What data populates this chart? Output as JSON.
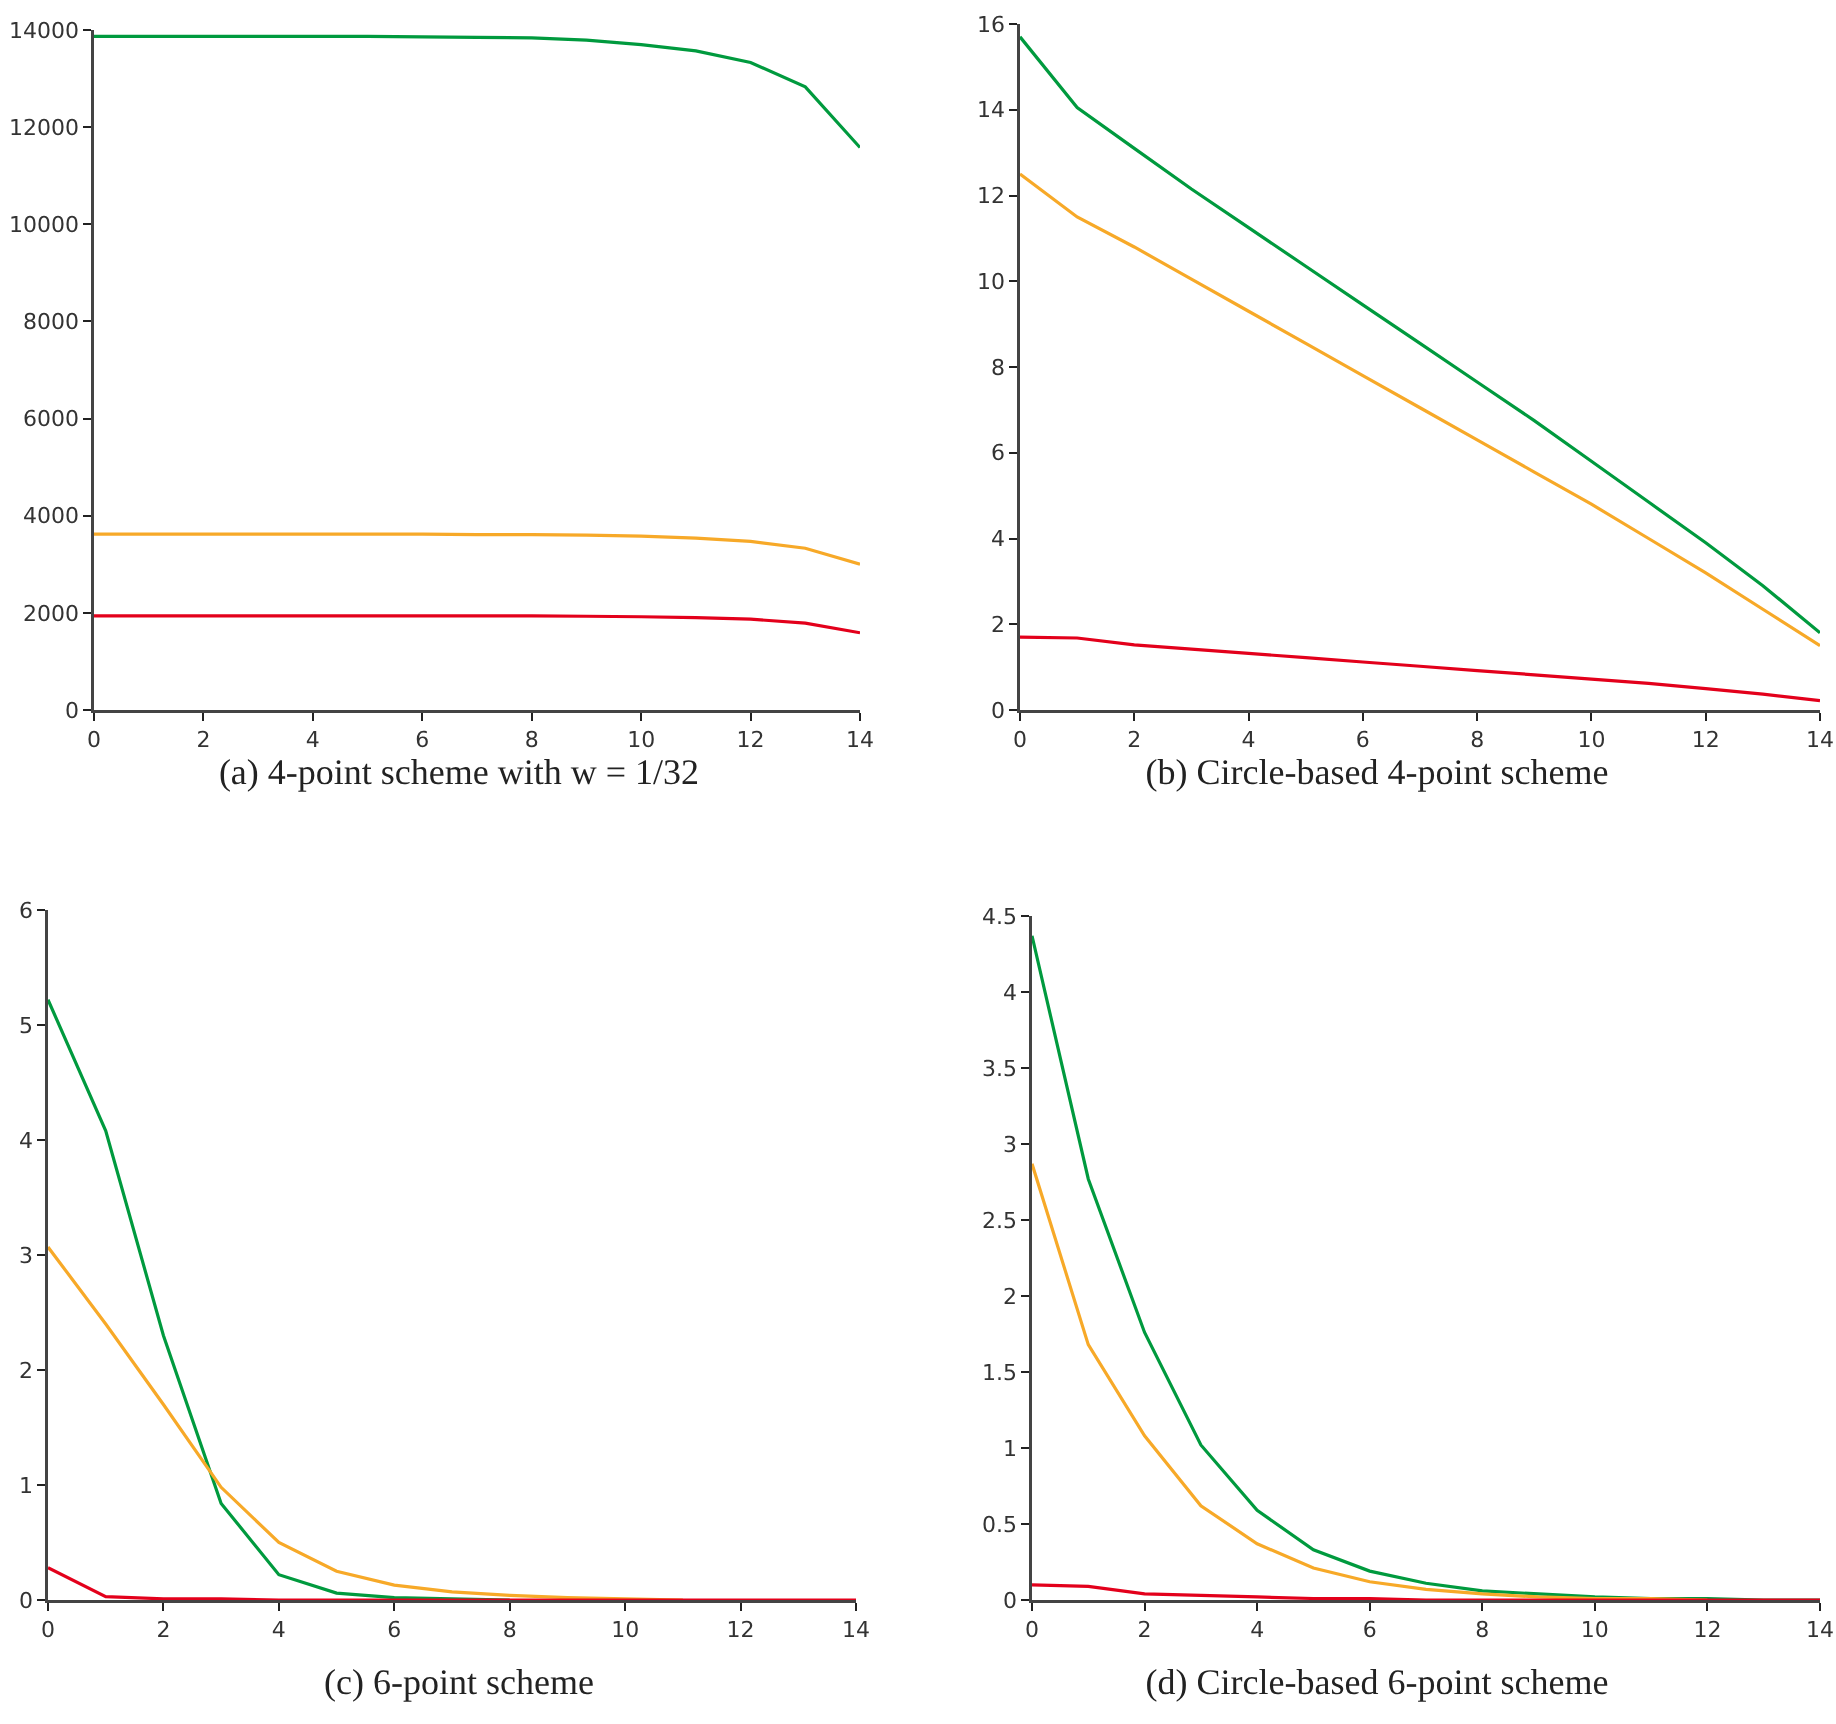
{
  "chart_data": [
    {
      "type": "line",
      "title": "(a) 4-point scheme with w = 1/32",
      "x": [
        0,
        1,
        2,
        3,
        4,
        5,
        6,
        7,
        8,
        9,
        10,
        11,
        12,
        13,
        14
      ],
      "xlim": [
        0,
        14
      ],
      "xticks": [
        0,
        2,
        4,
        6,
        8,
        10,
        12,
        14
      ],
      "ylim": [
        0,
        14000
      ],
      "yticks": [
        0,
        2000,
        4000,
        6000,
        8000,
        10000,
        12000,
        14000
      ],
      "series": [
        {
          "color": "#009a3e",
          "values": [
            13870,
            13870,
            13870,
            13870,
            13870,
            13870,
            13860,
            13850,
            13840,
            13790,
            13700,
            13570,
            13330,
            12830,
            11580
          ]
        },
        {
          "color": "#f7a928",
          "values": [
            3620,
            3620,
            3620,
            3620,
            3620,
            3620,
            3620,
            3610,
            3610,
            3600,
            3580,
            3540,
            3470,
            3330,
            3000
          ]
        },
        {
          "color": "#e3001b",
          "values": [
            1940,
            1940,
            1940,
            1940,
            1940,
            1940,
            1940,
            1940,
            1940,
            1930,
            1920,
            1900,
            1870,
            1790,
            1590
          ]
        }
      ]
    },
    {
      "type": "line",
      "title": "(b) Circle-based 4-point scheme",
      "x": [
        0,
        1,
        2,
        3,
        4,
        5,
        6,
        7,
        8,
        9,
        10,
        11,
        12,
        13,
        14
      ],
      "xlim": [
        0,
        14
      ],
      "xticks": [
        0,
        2,
        4,
        6,
        8,
        10,
        12,
        14
      ],
      "ylim": [
        0,
        16
      ],
      "yticks": [
        0,
        2,
        4,
        6,
        8,
        10,
        12,
        14,
        16
      ],
      "series": [
        {
          "color": "#009a3e",
          "values": [
            15.7,
            14.05,
            13.1,
            12.15,
            11.25,
            10.35,
            9.45,
            8.55,
            7.65,
            6.75,
            5.8,
            4.85,
            3.9,
            2.9,
            1.8
          ]
        },
        {
          "color": "#f7a928",
          "values": [
            12.5,
            11.5,
            10.8,
            10.05,
            9.3,
            8.55,
            7.8,
            7.05,
            6.3,
            5.55,
            4.8,
            4.0,
            3.2,
            2.35,
            1.5
          ]
        },
        {
          "color": "#e3001b",
          "values": [
            1.7,
            1.68,
            1.52,
            1.42,
            1.32,
            1.22,
            1.12,
            1.02,
            0.92,
            0.82,
            0.72,
            0.62,
            0.5,
            0.37,
            0.22
          ]
        }
      ]
    },
    {
      "type": "line",
      "title": "(c) 6-point scheme",
      "x": [
        0,
        1,
        2,
        3,
        4,
        5,
        6,
        7,
        8,
        9,
        10,
        11,
        12,
        13,
        14
      ],
      "xlim": [
        0,
        14
      ],
      "xticks": [
        0,
        2,
        4,
        6,
        8,
        10,
        12,
        14
      ],
      "ylim": [
        0,
        6
      ],
      "yticks": [
        0,
        1,
        2,
        3,
        4,
        5,
        6
      ],
      "series": [
        {
          "color": "#009a3e",
          "values": [
            5.22,
            4.08,
            2.3,
            0.84,
            0.22,
            0.06,
            0.02,
            0.01,
            0,
            null,
            null,
            null,
            null,
            null,
            null
          ]
        },
        {
          "color": "#f7a928",
          "values": [
            3.07,
            2.4,
            1.7,
            0.98,
            0.5,
            0.25,
            0.13,
            0.07,
            0.04,
            0.02,
            0.01,
            0,
            null,
            null,
            null
          ]
        },
        {
          "color": "#e3001b",
          "values": [
            0.28,
            0.03,
            0.01,
            0.01,
            0,
            0,
            0,
            0,
            0,
            0,
            0,
            0,
            0,
            0,
            0
          ]
        }
      ]
    },
    {
      "type": "line",
      "title": "(d) Circle-based 6-point scheme",
      "x": [
        0,
        1,
        2,
        3,
        4,
        5,
        6,
        7,
        8,
        9,
        10,
        11,
        12,
        13,
        14
      ],
      "xlim": [
        0,
        14
      ],
      "xticks": [
        0,
        2,
        4,
        6,
        8,
        10,
        12,
        14
      ],
      "ylim": [
        0,
        4.5
      ],
      "yticks": [
        0,
        0.5,
        1,
        1.5,
        2,
        2.5,
        3,
        3.5,
        4,
        4.5
      ],
      "series": [
        {
          "color": "#009a3e",
          "values": [
            4.37,
            2.77,
            1.76,
            1.02,
            0.59,
            0.33,
            0.19,
            0.11,
            0.06,
            0.04,
            0.02,
            0.01,
            0.01,
            0,
            0
          ]
        },
        {
          "color": "#f7a928",
          "values": [
            2.87,
            1.68,
            1.08,
            0.62,
            0.37,
            0.21,
            0.12,
            0.07,
            0.04,
            0.02,
            0.01,
            0.01,
            0,
            null,
            null
          ]
        },
        {
          "color": "#e3001b",
          "values": [
            0.1,
            0.09,
            0.04,
            0.03,
            0.02,
            0.01,
            0.01,
            0,
            0,
            0,
            0,
            0,
            0,
            0,
            0
          ]
        }
      ]
    }
  ]
}
